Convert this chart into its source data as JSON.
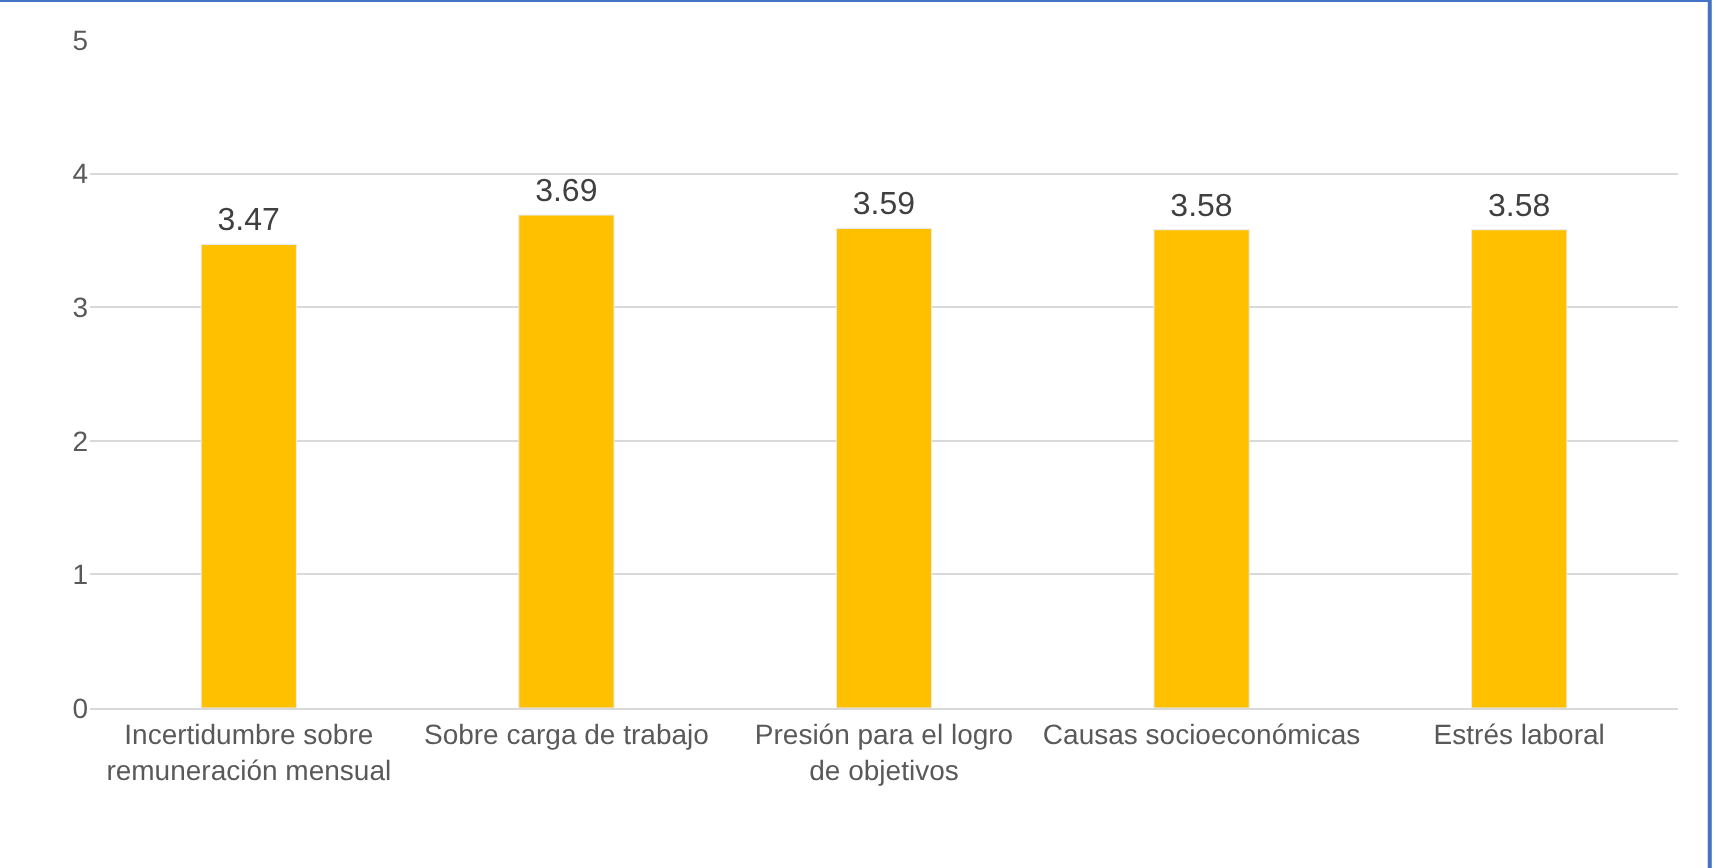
{
  "chart_data": {
    "type": "bar",
    "categories": [
      "Incertidumbre sobre remuneración mensual",
      "Sobre carga de trabajo",
      "Presión para el logro de objetivos",
      "Causas socioeconómicas",
      "Estrés laboral"
    ],
    "values": [
      3.47,
      3.69,
      3.59,
      3.58,
      3.58
    ],
    "color": "#ffc000",
    "ylim": [
      0,
      5
    ],
    "yticks": [
      0,
      1,
      2,
      3,
      4,
      5
    ],
    "grid": "y",
    "data_labels": true
  }
}
